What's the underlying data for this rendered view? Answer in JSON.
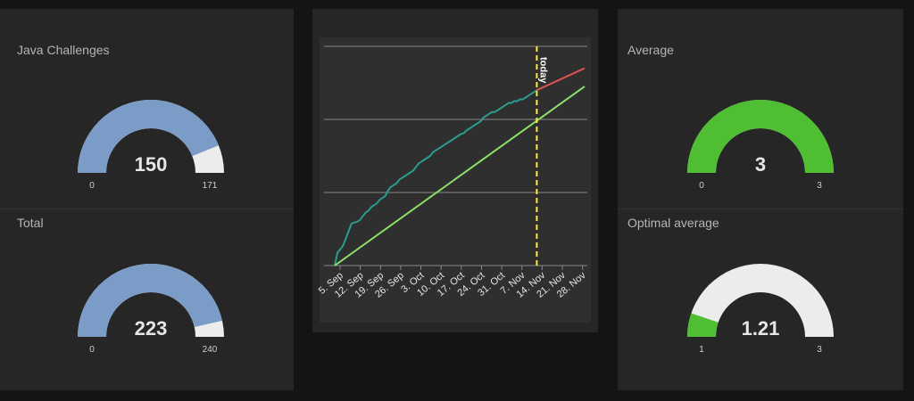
{
  "gauges": [
    {
      "title": "Java Challenges",
      "value": 150,
      "display": "150",
      "min": 0,
      "max": 171,
      "min_label": "0",
      "max_label": "171",
      "color": "#7a9cc6"
    },
    {
      "title": "Total",
      "value": 223,
      "display": "223",
      "min": 0,
      "max": 240,
      "min_label": "0",
      "max_label": "240",
      "color": "#7a9cc6"
    },
    {
      "title": "Average",
      "value": 3,
      "display": "3",
      "min": 0,
      "max": 3,
      "min_label": "0",
      "max_label": "3",
      "color": "#4fbe32"
    },
    {
      "title": "Optimal average",
      "value": 1.21,
      "display": "1.21",
      "min": 1,
      "max": 3,
      "min_label": "1",
      "max_label": "3",
      "color": "#4fbe32"
    }
  ],
  "gauge_track_color": "#ececec",
  "chart_data": {
    "type": "line",
    "x_tick_labels": [
      "5. Sep",
      "12. Sep",
      "19. Sep",
      "26. Sep",
      "3. Oct",
      "10. Oct",
      "17. Oct",
      "24. Oct",
      "31. Oct",
      "7. Nov",
      "14. Nov",
      "21. Nov",
      "28. Nov"
    ],
    "x_unit": "days from 5. Sep",
    "x_range": [
      0,
      90
    ],
    "y_range": [
      0,
      240
    ],
    "y_gridlines": [
      0,
      80,
      160,
      240
    ],
    "today_x": 72,
    "today_label": "today",
    "series": [
      {
        "color": "#2a9d8f",
        "points": [
          [
            0,
            0
          ],
          [
            1,
            14
          ],
          [
            2,
            18
          ],
          [
            3,
            22
          ],
          [
            4,
            30
          ],
          [
            5,
            38
          ],
          [
            6,
            46
          ],
          [
            7,
            47
          ],
          [
            8,
            48
          ],
          [
            9,
            50
          ],
          [
            10,
            54
          ],
          [
            11,
            58
          ],
          [
            12,
            60
          ],
          [
            13,
            64
          ],
          [
            14,
            66
          ],
          [
            15,
            68
          ],
          [
            16,
            72
          ],
          [
            17,
            74
          ],
          [
            18,
            76
          ],
          [
            19,
            82
          ],
          [
            20,
            86
          ],
          [
            21,
            88
          ],
          [
            22,
            90
          ],
          [
            23,
            94
          ],
          [
            24,
            96
          ],
          [
            25,
            98
          ],
          [
            26,
            100
          ],
          [
            27,
            102
          ],
          [
            28,
            104
          ],
          [
            29,
            108
          ],
          [
            30,
            112
          ],
          [
            31,
            114
          ],
          [
            32,
            116
          ],
          [
            33,
            118
          ],
          [
            34,
            120
          ],
          [
            35,
            124
          ],
          [
            36,
            126
          ],
          [
            37,
            128
          ],
          [
            38,
            130
          ],
          [
            39,
            132
          ],
          [
            40,
            134
          ],
          [
            41,
            136
          ],
          [
            42,
            138
          ],
          [
            43,
            140
          ],
          [
            44,
            142
          ],
          [
            45,
            144
          ],
          [
            46,
            145
          ],
          [
            47,
            148
          ],
          [
            48,
            150
          ],
          [
            49,
            152
          ],
          [
            50,
            154
          ],
          [
            51,
            156
          ],
          [
            52,
            158
          ],
          [
            53,
            162
          ],
          [
            54,
            164
          ],
          [
            55,
            166
          ],
          [
            56,
            168
          ],
          [
            57,
            168
          ],
          [
            58,
            170
          ],
          [
            59,
            172
          ],
          [
            60,
            174
          ],
          [
            61,
            176
          ],
          [
            62,
            178
          ],
          [
            63,
            178
          ],
          [
            64,
            180
          ],
          [
            65,
            180
          ],
          [
            66,
            182
          ],
          [
            67,
            182
          ],
          [
            68,
            184
          ],
          [
            69,
            186
          ],
          [
            70,
            188
          ],
          [
            71,
            190
          ],
          [
            72,
            192
          ]
        ]
      },
      {
        "color": "#e0554f",
        "points": [
          [
            72,
            192
          ],
          [
            89,
            216
          ]
        ]
      },
      {
        "color": "#8ae068",
        "points": [
          [
            0,
            0
          ],
          [
            89,
            196
          ]
        ]
      }
    ],
    "today_color": "#ffeb3b",
    "grid": true
  }
}
